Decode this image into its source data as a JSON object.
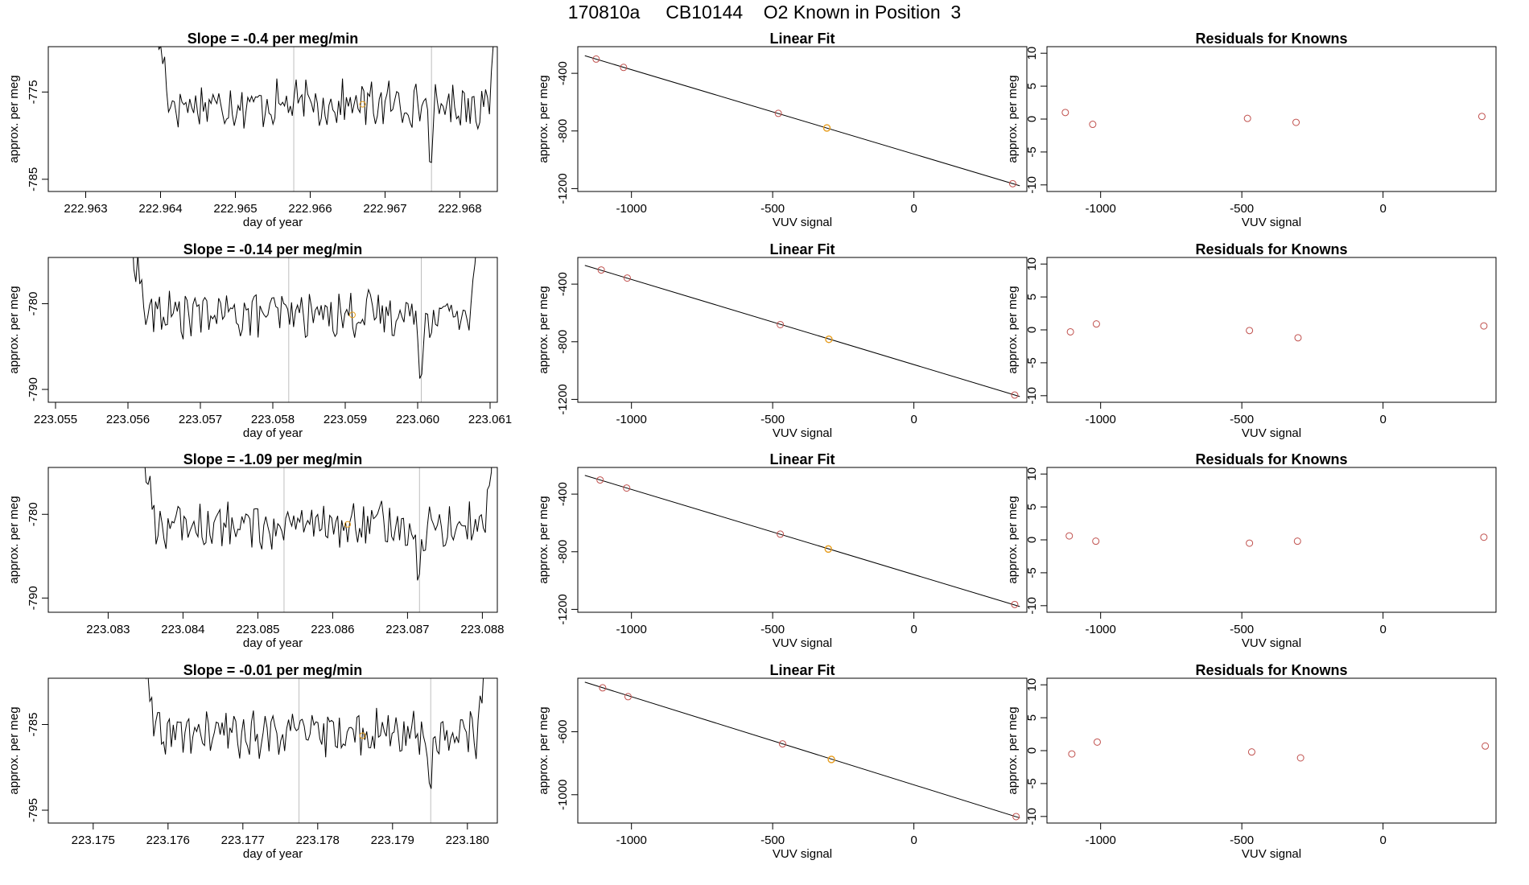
{
  "main_title": "170810a     CB10144    O2 Known in Position  3",
  "colors": {
    "trace": "#000000",
    "guide_line": "#bebebe",
    "known_point": "#c0504d",
    "highlight_point": "#e8a020"
  },
  "chart_data": [
    {
      "row": 1,
      "timeseries": {
        "type": "line",
        "title": "Slope =  -0.4  per meg/min",
        "xlabel": "day of year",
        "ylabel": "approx. per meg",
        "x_ticks": [
          "222.963",
          "222.964",
          "222.965",
          "222.966",
          "222.967",
          "222.968"
        ],
        "xlim": [
          222.9625,
          222.9685
        ],
        "y_ticks": [
          "-775",
          "-785"
        ],
        "ylim": [
          -786.4,
          -769.8
        ],
        "trace_x_range": [
          222.9639,
          222.96855
        ],
        "trace_level": -776.4,
        "guide_lines_x": [
          222.96578,
          222.96762
        ],
        "highlight_point": {
          "x": 222.9667,
          "y": -776.4
        }
      },
      "linear_fit": {
        "type": "scatter",
        "title": "Linear Fit",
        "xlabel": "VUV signal",
        "ylabel": "approx. per meg",
        "x_ticks": [
          "-1000",
          "-500",
          "0"
        ],
        "xlim": [
          -1190,
          400
        ],
        "y_ticks": [
          "-400",
          "-800",
          "-1200"
        ],
        "ylim": [
          -1220,
          -215
        ],
        "points": [
          {
            "x": -1125,
            "y": -301
          },
          {
            "x": -1028,
            "y": -359
          },
          {
            "x": -480,
            "y": -678
          },
          {
            "x": -308,
            "y": -779
          },
          {
            "x": 350,
            "y": -1166
          }
        ],
        "highlight_index": 3,
        "fit_line": {
          "x": [
            -1165,
            375
          ],
          "y": [
            -278,
            -1180
          ]
        }
      },
      "residuals": {
        "type": "scatter",
        "title": "Residuals for Knowns",
        "xlabel": "VUV signal",
        "ylabel": "approx. per meg",
        "x_ticks": [
          "-1000",
          "-500",
          "0"
        ],
        "xlim": [
          -1190,
          400
        ],
        "y_ticks": [
          "10",
          "5",
          "0",
          "-5",
          "-10"
        ],
        "ylim": [
          -11,
          11
        ],
        "points": [
          {
            "x": -1125,
            "y": 1.0
          },
          {
            "x": -1028,
            "y": -0.8
          },
          {
            "x": -480,
            "y": 0.1
          },
          {
            "x": -308,
            "y": -0.5
          },
          {
            "x": 350,
            "y": 0.4
          }
        ]
      }
    },
    {
      "row": 2,
      "timeseries": {
        "type": "line",
        "title": "Slope =  -0.14  per meg/min",
        "xlabel": "day of year",
        "ylabel": "approx. per meg",
        "x_ticks": [
          "223.055",
          "223.056",
          "223.057",
          "223.058",
          "223.059",
          "223.060",
          "223.061"
        ],
        "xlim": [
          223.0549,
          223.0611
        ],
        "y_ticks": [
          "-780",
          "-790"
        ],
        "ylim": [
          -791.5,
          -774.6
        ],
        "trace_x_range": [
          223.056,
          223.0609
        ],
        "trace_level": -781.2,
        "guide_lines_x": [
          223.05822,
          223.06005
        ],
        "highlight_point": {
          "x": 223.0591,
          "y": -781.3
        }
      },
      "linear_fit": {
        "type": "scatter",
        "title": "Linear Fit",
        "xlabel": "VUV signal",
        "ylabel": "approx. per meg",
        "x_ticks": [
          "-1000",
          "-500",
          "0"
        ],
        "xlim": [
          -1190,
          400
        ],
        "y_ticks": [
          "-400",
          "-800",
          "-1200"
        ],
        "ylim": [
          -1220,
          -215
        ],
        "points": [
          {
            "x": -1107,
            "y": -302
          },
          {
            "x": -1015,
            "y": -358
          },
          {
            "x": -473,
            "y": -681
          },
          {
            "x": -301,
            "y": -783
          },
          {
            "x": 357,
            "y": -1170
          }
        ],
        "highlight_index": 3,
        "fit_line": {
          "x": [
            -1165,
            375
          ],
          "y": [
            -270,
            -1180
          ]
        }
      },
      "residuals": {
        "type": "scatter",
        "title": "Residuals for Knowns",
        "xlabel": "VUV signal",
        "ylabel": "approx. per meg",
        "x_ticks": [
          "-1000",
          "-500",
          "0"
        ],
        "xlim": [
          -1190,
          400
        ],
        "y_ticks": [
          "10",
          "5",
          "0",
          "-5",
          "-10"
        ],
        "ylim": [
          -11,
          11
        ],
        "points": [
          {
            "x": -1107,
            "y": -0.3
          },
          {
            "x": -1015,
            "y": 0.9
          },
          {
            "x": -473,
            "y": -0.1
          },
          {
            "x": -301,
            "y": -1.2
          },
          {
            "x": 357,
            "y": 0.6
          }
        ]
      }
    },
    {
      "row": 3,
      "timeseries": {
        "type": "line",
        "title": "Slope =  -1.09  per meg/min",
        "xlabel": "day of year",
        "ylabel": "approx. per meg",
        "x_ticks": [
          "223.083",
          "223.084",
          "223.085",
          "223.086",
          "223.087",
          "223.088"
        ],
        "xlim": [
          223.0822,
          223.0882
        ],
        "y_ticks": [
          "-780",
          "-790"
        ],
        "ylim": [
          -791.7,
          -774.4
        ],
        "trace_x_range": [
          223.0834,
          223.0882
        ],
        "trace_level": -781.4,
        "guide_lines_x": [
          223.08535,
          223.08716
        ],
        "highlight_point": {
          "x": 223.0862,
          "y": -781.2
        }
      },
      "linear_fit": {
        "type": "scatter",
        "title": "Linear Fit",
        "xlabel": "VUV signal",
        "ylabel": "approx. per meg",
        "x_ticks": [
          "-1000",
          "-500",
          "0"
        ],
        "xlim": [
          -1190,
          400
        ],
        "y_ticks": [
          "-400",
          "-800",
          "-1200"
        ],
        "ylim": [
          -1220,
          -215
        ],
        "points": [
          {
            "x": -1111,
            "y": -302
          },
          {
            "x": -1017,
            "y": -358
          },
          {
            "x": -473,
            "y": -678
          },
          {
            "x": -303,
            "y": -781
          },
          {
            "x": 357,
            "y": -1166
          }
        ],
        "highlight_index": 3,
        "fit_line": {
          "x": [
            -1165,
            375
          ],
          "y": [
            -270,
            -1180
          ]
        }
      },
      "residuals": {
        "type": "scatter",
        "title": "Residuals for Knowns",
        "xlabel": "VUV signal",
        "ylabel": "approx. per meg",
        "x_ticks": [
          "-1000",
          "-500",
          "0"
        ],
        "xlim": [
          -1190,
          400
        ],
        "y_ticks": [
          "10",
          "5",
          "0",
          "-5",
          "-10"
        ],
        "ylim": [
          -11,
          11
        ],
        "points": [
          {
            "x": -1111,
            "y": 0.6
          },
          {
            "x": -1017,
            "y": -0.2
          },
          {
            "x": -473,
            "y": -0.5
          },
          {
            "x": -303,
            "y": -0.2
          },
          {
            "x": 357,
            "y": 0.4
          }
        ]
      }
    },
    {
      "row": 4,
      "timeseries": {
        "type": "line",
        "title": "Slope =  -0.01  per meg/min",
        "xlabel": "day of year",
        "ylabel": "approx. per meg",
        "x_ticks": [
          "223.175",
          "223.176",
          "223.177",
          "223.178",
          "223.179",
          "223.180"
        ],
        "xlim": [
          223.1744,
          223.1804
        ],
        "y_ticks": [
          "-785",
          "-795"
        ],
        "ylim": [
          -796.5,
          -779.6
        ],
        "trace_x_range": [
          223.1756,
          223.1803
        ],
        "trace_level": -786.1,
        "guide_lines_x": [
          223.17775,
          223.17951
        ],
        "highlight_point": {
          "x": 223.1786,
          "y": -786.3
        }
      },
      "linear_fit": {
        "type": "scatter",
        "title": "Linear Fit",
        "xlabel": "VUV signal",
        "ylabel": "approx. per meg",
        "x_ticks": [
          "-1000",
          "-500",
          "0"
        ],
        "xlim": [
          -1190,
          400
        ],
        "y_ticks": [
          "-600",
          "-1000"
        ],
        "ylim": [
          -1180,
          -260
        ],
        "points": [
          {
            "x": -1102,
            "y": -321
          },
          {
            "x": -1012,
            "y": -377
          },
          {
            "x": -465,
            "y": -677
          },
          {
            "x": -292,
            "y": -776
          },
          {
            "x": 362,
            "y": -1139
          }
        ],
        "highlight_index": 3,
        "fit_line": {
          "x": [
            -1165,
            375
          ],
          "y": [
            -285,
            -1147
          ]
        }
      },
      "residuals": {
        "type": "scatter",
        "title": "Residuals for Knowns",
        "xlabel": "VUV signal",
        "ylabel": "approx. per meg",
        "x_ticks": [
          "-1000",
          "-500",
          "0"
        ],
        "xlim": [
          -1190,
          400
        ],
        "y_ticks": [
          "10",
          "5",
          "0",
          "-5",
          "-10"
        ],
        "ylim": [
          -11,
          11
        ],
        "points": [
          {
            "x": -1102,
            "y": -0.5
          },
          {
            "x": -1012,
            "y": 1.3
          },
          {
            "x": -465,
            "y": -0.2
          },
          {
            "x": -292,
            "y": -1.1
          },
          {
            "x": 362,
            "y": 0.7
          }
        ]
      }
    }
  ]
}
